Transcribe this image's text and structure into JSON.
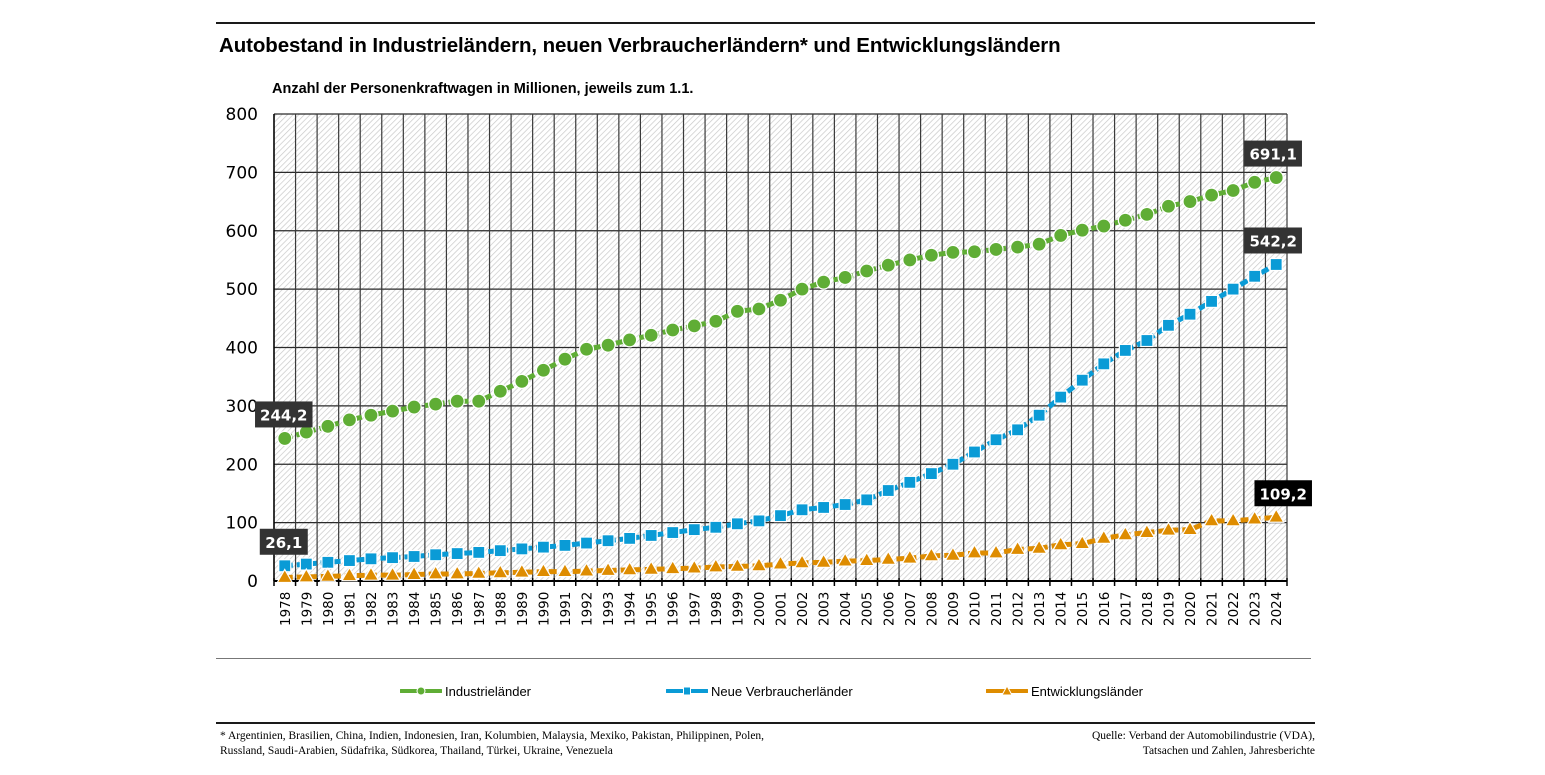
{
  "header": {
    "title": "Autobestand in Industrieländern, neuen Verbraucherländern* und Entwicklungsländern",
    "subtitle": "Anzahl der Personenkraftwagen in Millionen, jeweils zum 1.1."
  },
  "legend": [
    {
      "label": "Industrieländer",
      "marker": "circle",
      "color": "#5fad35"
    },
    {
      "label": "Neue Verbraucherländer",
      "marker": "square",
      "color": "#0a9bd6"
    },
    {
      "label": "Entwicklungsländer",
      "marker": "triangle",
      "color": "#de8c00"
    }
  ],
  "footer": {
    "footnote_line1": "* Argentinien, Brasilien, China, Indien, Indonesien, Iran, Kolumbien, Malaysia, Mexiko, Pakistan, Philippinen, Polen,",
    "footnote_line2": "Russland, Saudi-Arabien, Südafrika, Südkorea, Thailand, Türkei, Ukraine, Venezuela",
    "source_line1": "Quelle: Verband der Automobilindustrie (VDA),",
    "source_line2": "Tatsachen und Zahlen, Jahresberichte"
  },
  "chart_data": {
    "type": "line",
    "title": "Autobestand in Industrieländern, neuen Verbraucherländern* und Entwicklungsländern",
    "subtitle": "Anzahl der Personenkraftwagen in Millionen, jeweils zum 1.1.",
    "xlabel": "",
    "ylabel": "",
    "ylim": [
      0,
      800
    ],
    "yticks": [
      0,
      100,
      200,
      300,
      400,
      500,
      600,
      700,
      800
    ],
    "grid": true,
    "legend_position": "bottom",
    "categories": [
      "1978",
      "1979",
      "1980",
      "1981",
      "1982",
      "1983",
      "1984",
      "1985",
      "1986",
      "1987",
      "1988",
      "1989",
      "1990",
      "1991",
      "1992",
      "1993",
      "1994",
      "1995",
      "1996",
      "1997",
      "1998",
      "1999",
      "2000",
      "2001",
      "2002",
      "2003",
      "2004",
      "2005",
      "2006",
      "2007",
      "2008",
      "2009",
      "2010",
      "2011",
      "2012",
      "2013",
      "2014",
      "2015",
      "2016",
      "2017",
      "2018",
      "2019",
      "2020",
      "2021",
      "2022",
      "2023",
      "2024"
    ],
    "series": [
      {
        "name": "Industrieländer",
        "marker": "circle",
        "color": "#5fad35",
        "values": [
          244.2,
          255,
          265,
          276,
          284,
          291,
          298,
          303,
          308,
          308,
          325,
          342,
          361,
          380,
          397,
          404,
          413,
          421,
          430,
          437,
          445,
          462,
          466,
          481,
          500,
          512,
          520,
          531,
          541,
          550,
          558,
          563,
          564,
          568,
          572,
          577,
          592,
          601,
          608,
          618,
          628,
          642,
          650,
          661,
          669,
          683,
          691.1
        ]
      },
      {
        "name": "Neue Verbraucherländer",
        "marker": "square",
        "color": "#0a9bd6",
        "values": [
          26.1,
          29,
          32,
          35,
          38,
          40,
          42,
          45,
          47,
          49,
          52,
          55,
          58,
          61,
          65,
          69,
          73,
          78,
          83,
          88,
          92,
          98,
          103,
          112,
          122,
          126,
          131,
          139,
          155,
          169,
          184,
          200,
          221,
          242,
          259,
          284,
          315,
          344,
          372,
          395,
          412,
          438,
          457,
          479,
          500,
          522,
          542.2
        ]
      },
      {
        "name": "Entwicklungsländer",
        "marker": "triangle",
        "color": "#de8c00",
        "values": [
          6,
          7,
          8,
          9,
          10,
          10,
          11,
          12,
          12,
          13,
          14,
          15,
          16,
          16,
          17,
          18,
          19,
          20,
          21,
          22,
          24,
          25,
          26,
          29,
          31,
          32,
          34,
          35,
          37,
          39,
          43,
          44,
          48,
          48,
          54,
          56,
          62,
          64,
          73,
          79,
          83,
          87,
          88,
          103,
          103,
          106,
          109.2
        ]
      }
    ],
    "annotations": [
      {
        "series": 0,
        "category": "1978",
        "text": "244,2",
        "bg": "#333333"
      },
      {
        "series": 1,
        "category": "1978",
        "text": "26,1",
        "bg": "#333333"
      },
      {
        "series": 0,
        "category": "2024",
        "text": "691,1",
        "bg": "#333333"
      },
      {
        "series": 1,
        "category": "2024",
        "text": "542,2",
        "bg": "#333333"
      },
      {
        "series": 2,
        "category": "2024",
        "text": "109,2",
        "bg": "#000000"
      }
    ]
  }
}
